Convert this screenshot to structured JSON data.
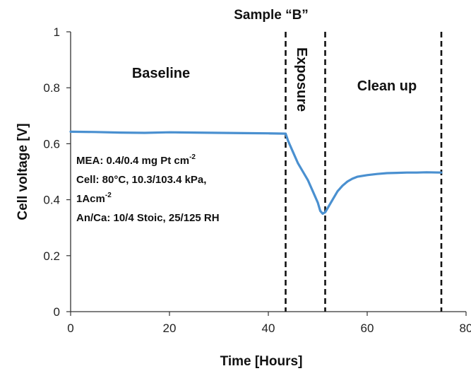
{
  "chart_data": {
    "type": "line",
    "title": "Sample “B”",
    "xlabel": "Time [Hours]",
    "ylabel": "Cell voltage [V]",
    "xlim": [
      0,
      80
    ],
    "ylim": [
      0,
      1
    ],
    "xticks": [
      "0",
      "20",
      "40",
      "60",
      "80"
    ],
    "yticks": [
      "0",
      "0.2",
      "0.4",
      "0.6",
      "0.8",
      "1"
    ],
    "grid": false,
    "series": [
      {
        "color": "#4a90d0",
        "x": [
          0,
          5,
          10,
          15,
          20,
          25,
          30,
          35,
          40,
          43.5,
          44,
          45,
          46,
          47,
          48,
          49,
          50,
          50.5,
          51,
          51.5,
          52,
          53,
          54,
          55,
          56,
          57,
          58,
          60,
          62,
          64,
          66,
          68,
          70,
          72,
          75
        ],
        "y": [
          0.643,
          0.642,
          0.64,
          0.639,
          0.641,
          0.64,
          0.639,
          0.638,
          0.637,
          0.636,
          0.61,
          0.57,
          0.53,
          0.5,
          0.47,
          0.43,
          0.39,
          0.36,
          0.35,
          0.355,
          0.37,
          0.4,
          0.43,
          0.45,
          0.465,
          0.475,
          0.482,
          0.488,
          0.492,
          0.495,
          0.496,
          0.497,
          0.497,
          0.498,
          0.497
        ]
      }
    ],
    "vlines": [
      43.5,
      51.5,
      75
    ],
    "region_labels": [
      "Baseline",
      "Exposure",
      "Clean up"
    ],
    "annotations": {
      "mea": "MEA: 0.4/0.4 mg Pt cm",
      "mea_sup": "-2",
      "cell": "Cell: 80°C, 10.3/103.4 kPa,",
      "current": "1Acm",
      "current_sup": "-2",
      "stoic": "An/Ca: 10/4 Stoic, 25/125 RH"
    }
  }
}
